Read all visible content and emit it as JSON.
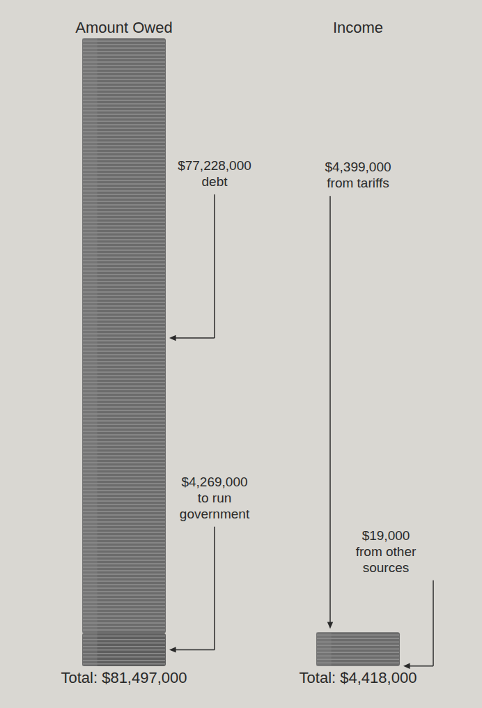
{
  "chart_data": {
    "type": "bar",
    "stacked": true,
    "categories": [
      "Amount Owed",
      "Income"
    ],
    "series": [
      {
        "name": "debt",
        "color": "#6b6b6b",
        "values": [
          77228000,
          null
        ],
        "value_labels": [
          "$77,228,000",
          null
        ]
      },
      {
        "name": "to run government",
        "color": "#5e5e5e",
        "values": [
          4269000,
          null
        ],
        "value_labels": [
          "$4,269,000",
          null
        ]
      },
      {
        "name": "from tariffs",
        "color": "#6b6b6b",
        "values": [
          null,
          4399000
        ],
        "value_labels": [
          null,
          "$4,399,000"
        ]
      },
      {
        "name": "from other sources",
        "color": "#5e5e5e",
        "values": [
          null,
          19000
        ],
        "value_labels": [
          null,
          "$19,000"
        ]
      }
    ],
    "total_labels": [
      "Total: $81,497,000",
      "Total: $4,418,000"
    ],
    "ylim": [
      0,
      81497000
    ],
    "tick_labels": "x",
    "data_labels": true
  }
}
